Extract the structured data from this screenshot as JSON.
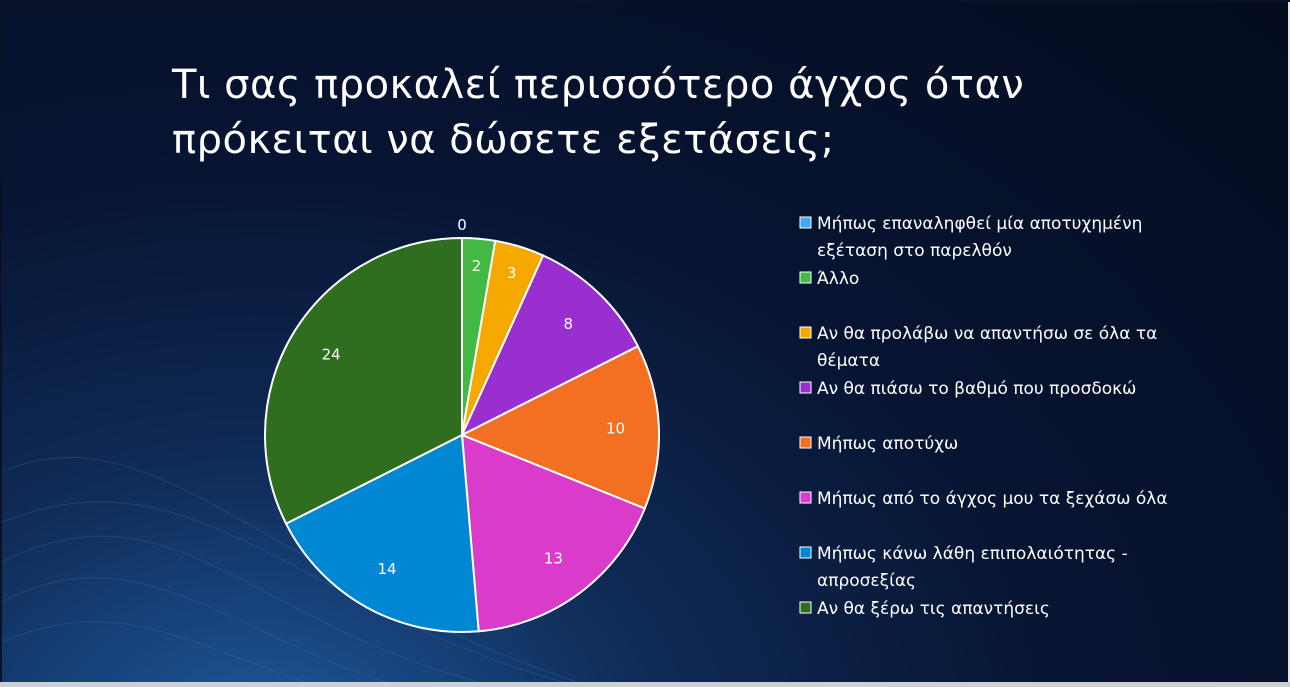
{
  "slide": {
    "title_lines": [
      "Τι σας προκαλεί περισσότερο άγχος όταν",
      "πρόκειται να δώσετε εξετάσεις;"
    ]
  },
  "chart_data": {
    "type": "pie",
    "title": "Τι σας προκαλεί περισσότερο άγχος όταν πρόκειται να δώσετε εξετάσεις;",
    "legend_position": "right",
    "categories": [
      "Μήπως επαναληφθεί μία αποτυχημένη εξέταση στο παρελθόν",
      "Άλλο",
      "Αν θα προλάβω να απαντήσω σε όλα τα θέματα",
      "Αν θα πιάσω το βαθμό που προσδοκώ",
      "Μήπως αποτύχω",
      "Μήπως από το άγχος μου τα ξεχάσω όλα",
      "Μήπως κάνω λάθη επιπολαιότητας - απροσεξίας",
      "Αν θα ξέρω τις απαντήσεις"
    ],
    "values": [
      0,
      2,
      3,
      8,
      10,
      13,
      14,
      24
    ],
    "value_labels": [
      "0",
      "2",
      "3",
      "8",
      "10",
      "13",
      "14",
      "24"
    ],
    "legend_lines": [
      [
        "Μήπως επαναληφθεί μία αποτυχημένη",
        "εξέταση στο παρελθόν"
      ],
      [
        "Άλλο"
      ],
      [
        "Αν θα προλάβω να απαντήσω σε όλα τα",
        "θέματα"
      ],
      [
        "Αν θα πιάσω το βαθμό που προσδοκώ"
      ],
      [
        "Μήπως αποτύχω"
      ],
      [
        "Μήπως από το άγχος μου τα ξεχάσω όλα"
      ],
      [
        "Μήπως κάνω λάθη επιπολαιότητας  -",
        "απροσεξίας"
      ],
      [
        "Αν θα ξέρω τις απαντήσεις"
      ]
    ],
    "colors": [
      "#3fa9f5",
      "#43b843",
      "#f5a800",
      "#9a2fcf",
      "#f36f21",
      "#d93bcb",
      "#0087d4",
      "#2f6e1f"
    ]
  }
}
